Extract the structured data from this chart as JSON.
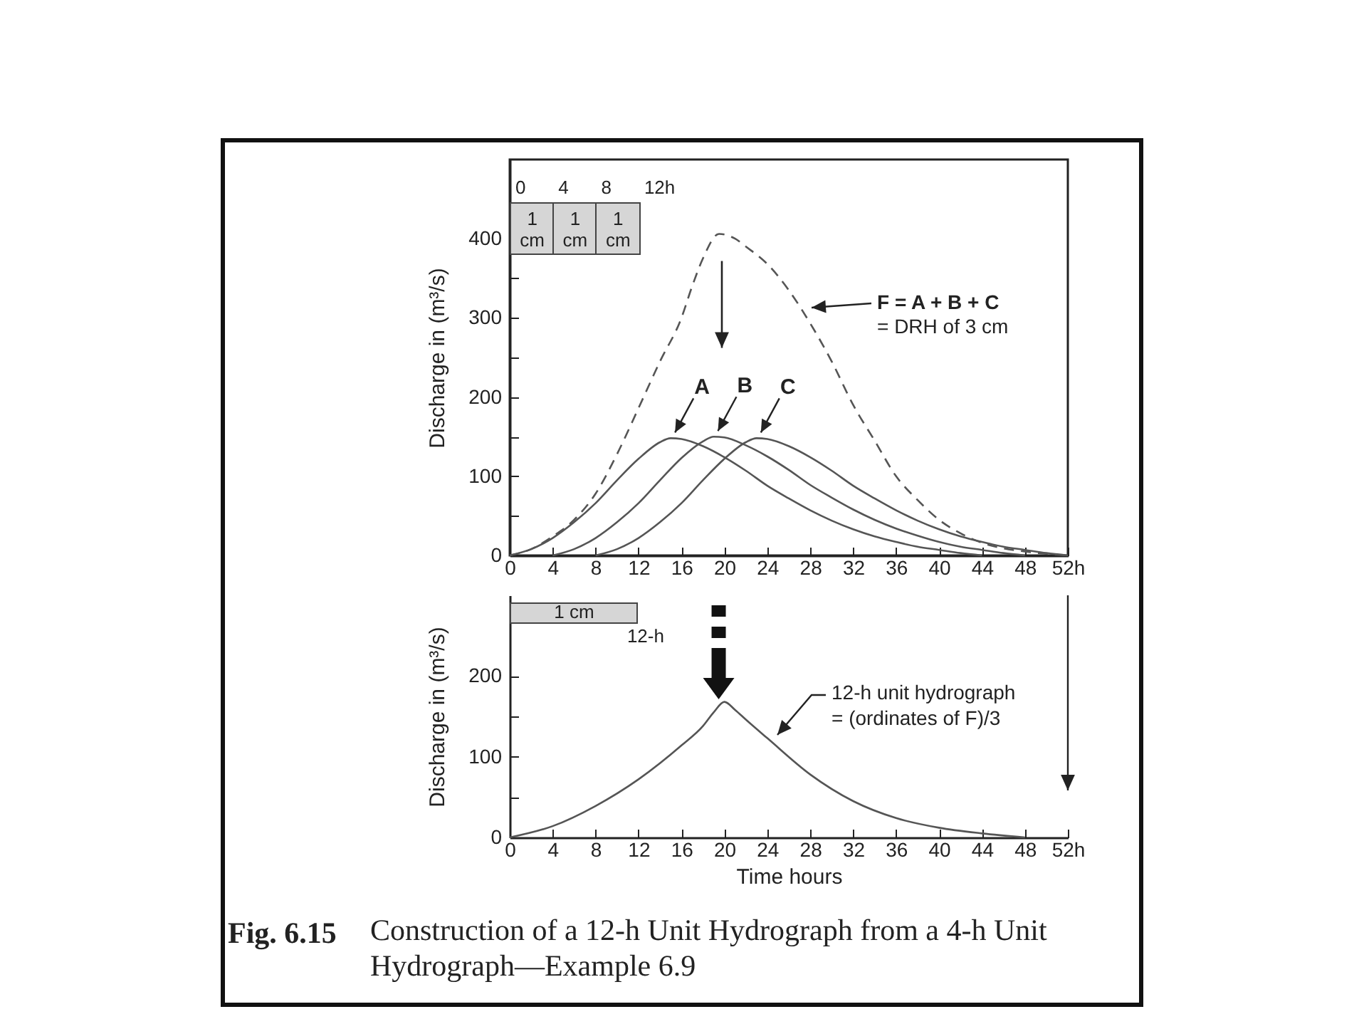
{
  "chart_data": [
    {
      "type": "line",
      "ylabel": "Discharge in (m³/s)",
      "xlim": [
        0,
        52
      ],
      "xticks": [
        0,
        4,
        8,
        12,
        16,
        20,
        24,
        28,
        32,
        36,
        40,
        44,
        48,
        {
          "value": 52,
          "label": "52h"
        }
      ],
      "ylim": [
        0,
        500
      ],
      "yticks": [
        0,
        {
          "value": 50,
          "label": null
        },
        100,
        {
          "value": 150,
          "label": null
        },
        200,
        {
          "value": 250,
          "label": null
        },
        300,
        {
          "value": 350,
          "label": null
        },
        400
      ],
      "series": [
        {
          "name": "A",
          "color": "#555555",
          "x": [
            0,
            2,
            4,
            6,
            8,
            10,
            12,
            14,
            15,
            16,
            18,
            20,
            22,
            24,
            26,
            28,
            30,
            32,
            34,
            36,
            38,
            40,
            42,
            44
          ],
          "values": [
            0,
            8,
            22,
            42,
            66,
            95,
            122,
            143,
            148,
            147,
            138,
            124,
            107,
            88,
            72,
            57,
            44,
            33,
            24,
            17,
            11,
            7,
            3,
            0
          ]
        },
        {
          "name": "B",
          "color": "#555555",
          "x": [
            4,
            6,
            8,
            10,
            12,
            14,
            16,
            18,
            19,
            20,
            22,
            24,
            26,
            28,
            30,
            32,
            34,
            36,
            38,
            40,
            42,
            44,
            46,
            48
          ],
          "values": [
            0,
            8,
            22,
            42,
            66,
            95,
            123,
            144,
            150,
            149,
            139,
            125,
            108,
            89,
            73,
            58,
            45,
            34,
            25,
            17,
            11,
            7,
            3,
            0
          ]
        },
        {
          "name": "C",
          "color": "#555555",
          "x": [
            8,
            10,
            12,
            14,
            16,
            18,
            20,
            22,
            23,
            24,
            26,
            28,
            30,
            32,
            34,
            36,
            38,
            40,
            42,
            44,
            46,
            48,
            50,
            52
          ],
          "values": [
            0,
            8,
            22,
            42,
            66,
            95,
            122,
            143,
            148,
            147,
            138,
            124,
            107,
            88,
            72,
            57,
            44,
            33,
            24,
            17,
            11,
            7,
            3,
            0
          ]
        },
        {
          "color": "#555555",
          "line_style": "dashed",
          "x": [
            0,
            2,
            4,
            6,
            8,
            10,
            12,
            14,
            16,
            17,
            18,
            19.5,
            21,
            22,
            24,
            26,
            28,
            30,
            32,
            34,
            36,
            38,
            40,
            42,
            44,
            46,
            48,
            50,
            52
          ],
          "values": [
            0,
            8,
            24,
            45,
            78,
            128,
            186,
            245,
            300,
            340,
            375,
            406,
            400,
            390,
            368,
            335,
            293,
            245,
            190,
            145,
            100,
            70,
            45,
            28,
            16,
            9,
            5,
            2,
            0
          ]
        }
      ],
      "annotations": [
        "F = A + B + C",
        "= DRH of 3 cm",
        "0",
        "4",
        "8",
        "12h",
        "1 cm",
        "1 cm",
        "1 cm"
      ]
    },
    {
      "type": "line",
      "xlabel": "Time hours",
      "ylabel": "Discharge in (m³/s)",
      "xlim": [
        0,
        52
      ],
      "xticks": [
        0,
        4,
        8,
        12,
        16,
        20,
        24,
        28,
        32,
        36,
        40,
        44,
        48,
        {
          "value": 52,
          "label": "52h"
        }
      ],
      "ylim": [
        0,
        300
      ],
      "yticks": [
        0,
        {
          "value": 50,
          "label": null
        },
        100,
        {
          "value": 150,
          "label": null
        },
        200
      ],
      "series": [
        {
          "color": "#555555",
          "x": [
            0,
            4,
            8,
            12,
            16,
            18,
            19,
            20,
            21,
            22,
            24,
            28,
            32,
            36,
            40,
            44,
            48
          ],
          "values": [
            0,
            14,
            39,
            72,
            114,
            138,
            155,
            168,
            158,
            146,
            123,
            78,
            45,
            24,
            12,
            5,
            0
          ]
        }
      ],
      "annotations": [
        "12-h unit hydrograph",
        "= (ordinates of F)/3",
        "1 cm",
        "12-h",
        "Fig. 6.15",
        "Construction of a 12-h Unit Hydrograph from a 4-h Unit Hydrograph—Example 6.9"
      ]
    }
  ]
}
